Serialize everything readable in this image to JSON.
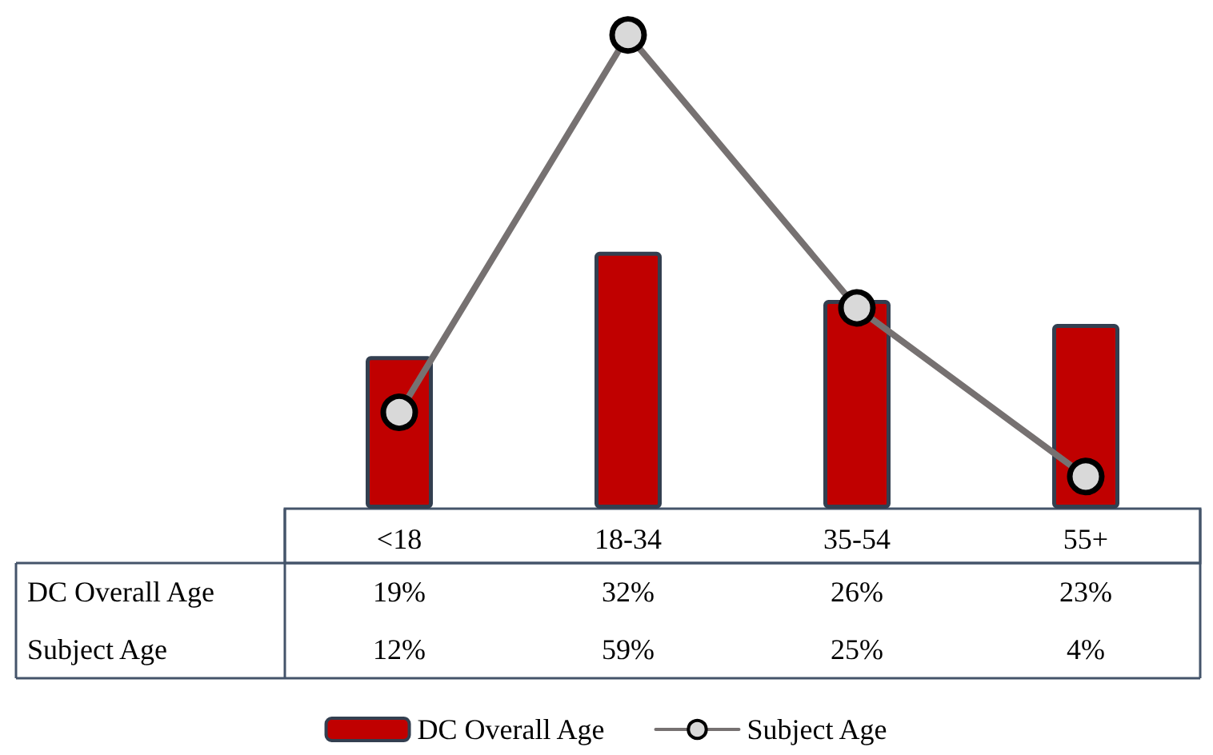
{
  "chart_data": {
    "type": "bar",
    "categories": [
      "<18",
      "18-34",
      "35-54",
      "55+"
    ],
    "series": [
      {
        "name": "DC Overall Age",
        "color": "#c00000",
        "values": [
          19,
          32,
          26,
          23
        ],
        "value_labels": [
          "19%",
          "32%",
          "26%",
          "23%"
        ]
      },
      {
        "name": "Subject Age",
        "type": "line",
        "color": "#767171",
        "values": [
          12,
          59,
          25,
          4
        ],
        "value_labels": [
          "12%",
          "59%",
          "25%",
          "4%"
        ]
      }
    ],
    "marker": "circle",
    "line_style": "solid",
    "legend": "bottom"
  }
}
